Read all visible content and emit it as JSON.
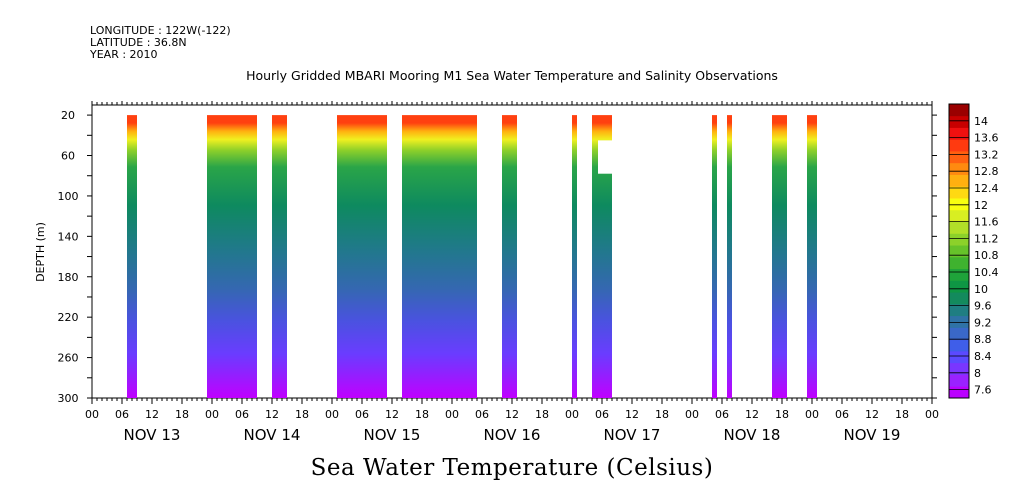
{
  "header": {
    "longitude": "LONGITUDE : 122W(-122)",
    "latitude": "LATITUDE : 36.8N",
    "year": "YEAR : 2010"
  },
  "chart_data": {
    "type": "heatmap",
    "title": "Hourly Gridded MBARI Mooring M1 Sea Water Temperature and Salinity Observations",
    "ylabel": "DEPTH (m)",
    "xlabel": "Sea Water Temperature (Celsius)",
    "x_units": "hours since NOV 13 00:00",
    "xlim": [
      0,
      168
    ],
    "ylim": [
      300,
      10
    ],
    "y_inverted": true,
    "y_ticks": [
      20,
      60,
      100,
      140,
      180,
      220,
      260,
      300
    ],
    "x_tick_labels": [
      "00",
      "06",
      "12",
      "18",
      "00",
      "06",
      "12",
      "18",
      "00",
      "06",
      "12",
      "18",
      "00",
      "06",
      "12",
      "18",
      "00",
      "06",
      "12",
      "18",
      "00",
      "06",
      "12",
      "18",
      "00",
      "06",
      "12",
      "18",
      "00"
    ],
    "day_labels": [
      "NOV 13",
      "NOV 14",
      "NOV 15",
      "NOV 16",
      "NOV 17",
      "NOV 18",
      "NOV 19"
    ],
    "data_top_depth": 20,
    "data_bottom_depth": 300,
    "colorbar": {
      "levels": [
        7.6,
        8,
        8.4,
        8.8,
        9.2,
        9.6,
        10,
        10.4,
        10.8,
        11.2,
        11.6,
        12,
        12.4,
        12.8,
        13.2,
        13.6,
        14
      ],
      "colors": [
        "#bb00ff",
        "#9a22ff",
        "#7a36ff",
        "#5b4aff",
        "#3f5ee9",
        "#3a68c8",
        "#2f72a6",
        "#1f7e82",
        "#138a5d",
        "#0e9644",
        "#1fa33a",
        "#3fb22f",
        "#66c22a",
        "#8cd12a",
        "#b2df28",
        "#d8ee22",
        "#f8ff10",
        "#ffd912",
        "#ffb010",
        "#ff8a10",
        "#ff6010",
        "#ff3a10",
        "#f01010",
        "#c80000",
        "#9a0000"
      ]
    },
    "data_segments": [
      {
        "start": 7,
        "end": 9
      },
      {
        "start": 23,
        "end": 33
      },
      {
        "start": 36,
        "end": 39
      },
      {
        "start": 49,
        "end": 59
      },
      {
        "start": 62,
        "end": 77
      },
      {
        "start": 82,
        "end": 85
      },
      {
        "start": 96,
        "end": 97
      },
      {
        "start": 100,
        "end": 104,
        "gap_from_hour": 101.2,
        "gap_depth": [
          45,
          78
        ]
      },
      {
        "start": 124,
        "end": 125
      },
      {
        "start": 127,
        "end": 128
      },
      {
        "start": 136,
        "end": 139
      },
      {
        "start": 143,
        "end": 145
      }
    ]
  }
}
